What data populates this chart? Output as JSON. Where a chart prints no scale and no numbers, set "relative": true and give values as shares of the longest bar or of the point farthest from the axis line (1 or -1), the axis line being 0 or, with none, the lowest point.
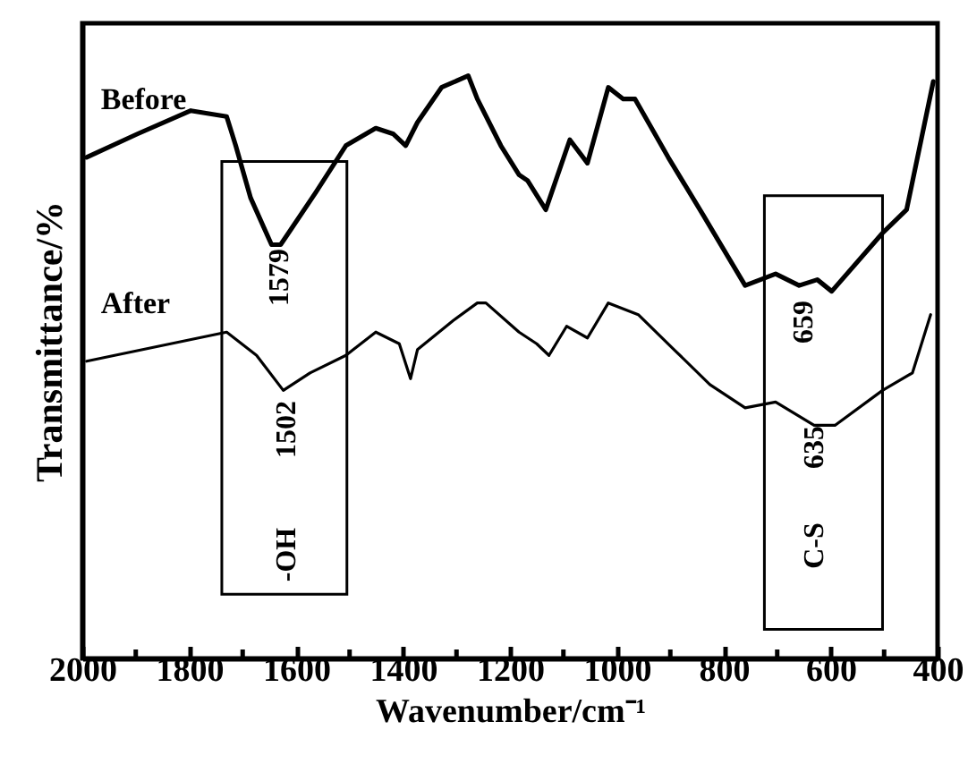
{
  "chart_data": {
    "type": "line",
    "relative": true,
    "xlabel": "Wavenumber/cm⁻¹",
    "ylabel": "Transmittance/%",
    "legend": false,
    "grid": false,
    "xlim": [
      2000,
      400
    ],
    "xticks": [
      2000,
      {
        "value": 1900,
        "label": null
      },
      1800,
      {
        "value": 1700,
        "label": null
      },
      1600,
      {
        "value": 1500,
        "label": null
      },
      1400,
      {
        "value": 1300,
        "label": null
      },
      1200,
      {
        "value": 1100,
        "label": null
      },
      1000,
      {
        "value": 900,
        "label": null
      },
      800,
      {
        "value": 700,
        "label": null
      },
      600,
      {
        "value": 500,
        "label": null
      },
      400
    ],
    "series": [
      {
        "name": "Before",
        "color": "#000000",
        "x": [
          1992,
          1897,
          1797,
          1730,
          1713,
          1685,
          1646,
          1629,
          1607,
          1563,
          1507,
          1451,
          1418,
          1395,
          1373,
          1328,
          1278,
          1261,
          1217,
          1183,
          1167,
          1133,
          1088,
          1055,
          1016,
          988,
          966,
          904,
          838,
          760,
          703,
          659,
          625,
          598,
          503,
          458,
          408
        ],
        "values": [
          0.86,
          0.9,
          0.94,
          0.93,
          0.88,
          0.79,
          0.71,
          0.71,
          0.74,
          0.8,
          0.88,
          0.91,
          0.9,
          0.88,
          0.92,
          0.98,
          1.0,
          0.96,
          0.88,
          0.83,
          0.82,
          0.77,
          0.89,
          0.85,
          0.98,
          0.96,
          0.96,
          0.86,
          0.76,
          0.64,
          0.66,
          0.64,
          0.65,
          0.63,
          0.73,
          0.77,
          0.99
        ]
      },
      {
        "name": "After",
        "color": "#000000",
        "x": [
          1992,
          1730,
          1674,
          1624,
          1574,
          1507,
          1451,
          1407,
          1386,
          1373,
          1306,
          1261,
          1245,
          1183,
          1150,
          1127,
          1094,
          1055,
          1016,
          960,
          893,
          826,
          760,
          703,
          631,
          592,
          503,
          447,
          413
        ],
        "values": [
          0.51,
          0.56,
          0.52,
          0.46,
          0.49,
          0.52,
          0.56,
          0.54,
          0.48,
          0.53,
          0.58,
          0.61,
          0.61,
          0.56,
          0.54,
          0.52,
          0.57,
          0.55,
          0.61,
          0.59,
          0.53,
          0.47,
          0.43,
          0.44,
          0.4,
          0.4,
          0.46,
          0.49,
          0.59
        ]
      }
    ],
    "annotations": [
      "1579",
      "1502",
      "-OH",
      "659",
      "635",
      "C-S"
    ]
  }
}
